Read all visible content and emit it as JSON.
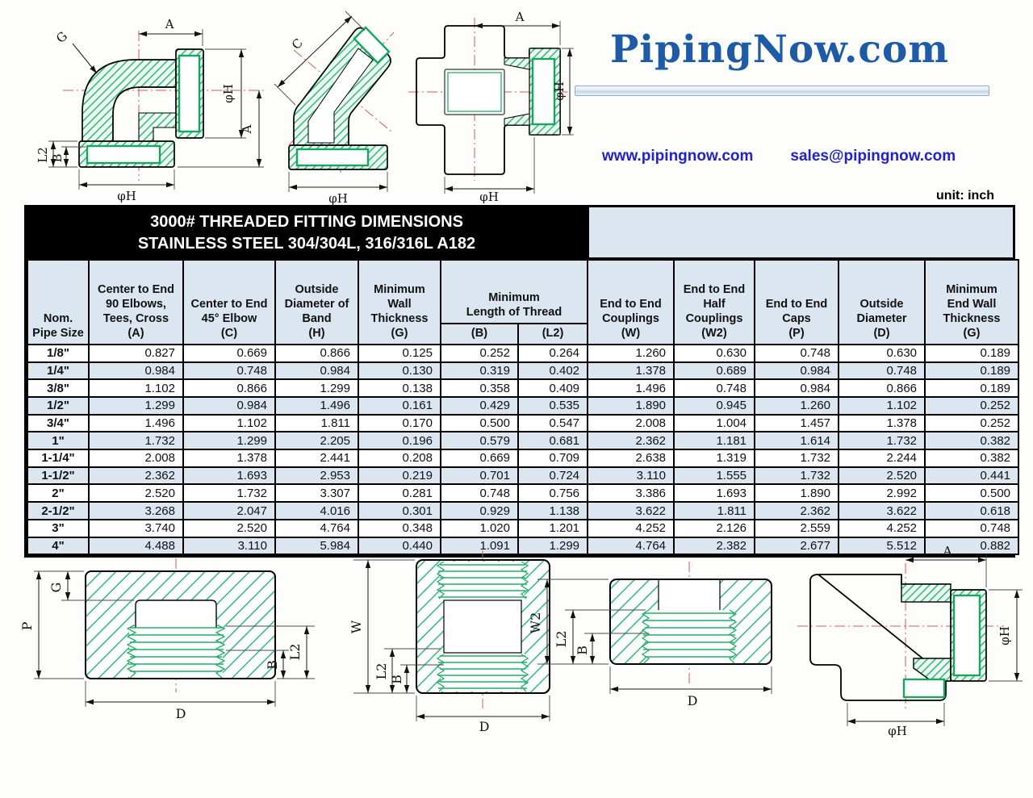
{
  "page": {
    "unit_note": "unit: inch"
  },
  "logo": {
    "text": "PipingNow.com",
    "website": "www.pipingnow.com",
    "email": "sales@pipingnow.com"
  },
  "title": {
    "line1": "3000# THREADED FITTING DIMENSIONS",
    "line2": "STAINLESS STEEL 304/304L, 316/316L  A182"
  },
  "colors": {
    "logo_blue": "#1e5ba7",
    "link_blue": "#2121cf",
    "table_header_bg": "#dce6f1",
    "title_bg": "#000000",
    "title_fg": "#ffffff",
    "hatch_green": "#2fb878",
    "socket_green": "#17a55f",
    "centerline_red": "#d85a5a"
  },
  "table": {
    "headers": {
      "size": "Nom.\nPipe Size",
      "a": "Center to End\n90 Elbows,\nTees, Cross\n(A)",
      "c": "Center to End\n45° Elbow\n(C)",
      "h": "Outside\nDiameter of\nBand\n(H)",
      "g": "Minimum\nWall\nThickness\n(G)",
      "thread": "Minimum\nLength of Thread",
      "b": "(B)",
      "l2": "(L2)",
      "w": "End to End\nCouplings\n(W)",
      "w2": "End to End\nHalf\nCouplings\n(W2)",
      "p": "End to End\nCaps\n(P)",
      "d": "Outside\nDiameter\n(D)",
      "g2": "Minimum\nEnd Wall\nThickness\n(G)"
    },
    "rows": [
      [
        "1/8\"",
        "0.827",
        "0.669",
        "0.866",
        "0.125",
        "0.252",
        "0.264",
        "1.260",
        "0.630",
        "0.748",
        "0.630",
        "0.189"
      ],
      [
        "1/4\"",
        "0.984",
        "0.748",
        "0.984",
        "0.130",
        "0.319",
        "0.402",
        "1.378",
        "0.689",
        "0.984",
        "0.748",
        "0.189"
      ],
      [
        "3/8\"",
        "1.102",
        "0.866",
        "1.299",
        "0.138",
        "0.358",
        "0.409",
        "1.496",
        "0.748",
        "0.984",
        "0.866",
        "0.189"
      ],
      [
        "1/2\"",
        "1.299",
        "0.984",
        "1.496",
        "0.161",
        "0.429",
        "0.535",
        "1.890",
        "0.945",
        "1.260",
        "1.102",
        "0.252"
      ],
      [
        "3/4\"",
        "1.496",
        "1.102",
        "1.811",
        "0.170",
        "0.500",
        "0.547",
        "2.008",
        "1.004",
        "1.457",
        "1.378",
        "0.252"
      ],
      [
        "1\"",
        "1.732",
        "1.299",
        "2.205",
        "0.196",
        "0.579",
        "0.681",
        "2.362",
        "1.181",
        "1.614",
        "1.732",
        "0.382"
      ],
      [
        "1-1/4\"",
        "2.008",
        "1.378",
        "2.441",
        "0.208",
        "0.669",
        "0.709",
        "2.638",
        "1.319",
        "1.732",
        "2.244",
        "0.382"
      ],
      [
        "1-1/2\"",
        "2.362",
        "1.693",
        "2.953",
        "0.219",
        "0.701",
        "0.724",
        "3.110",
        "1.555",
        "1.732",
        "2.520",
        "0.441"
      ],
      [
        "2\"",
        "2.520",
        "1.732",
        "3.307",
        "0.281",
        "0.748",
        "0.756",
        "3.386",
        "1.693",
        "1.890",
        "2.992",
        "0.500"
      ],
      [
        "2-1/2\"",
        "3.268",
        "2.047",
        "4.016",
        "0.301",
        "0.929",
        "1.138",
        "3.622",
        "1.811",
        "2.362",
        "3.622",
        "0.618"
      ],
      [
        "3\"",
        "3.740",
        "2.520",
        "4.764",
        "0.348",
        "1.020",
        "1.201",
        "4.252",
        "2.126",
        "2.559",
        "4.252",
        "0.748"
      ],
      [
        "4\"",
        "4.488",
        "3.110",
        "5.984",
        "0.440",
        "1.091",
        "1.299",
        "4.764",
        "2.382",
        "2.677",
        "5.512",
        "0.882"
      ]
    ]
  },
  "drawings": {
    "elbow90": {
      "a_top": "A",
      "g": "G",
      "h_right": "φH",
      "a_right": "A",
      "l2": "L2",
      "b": "B",
      "h_bottom": "φH"
    },
    "elbow45": {
      "c": "C",
      "h_bottom": "φH",
      "c_side": "C"
    },
    "cross": {
      "a_top": "A",
      "h_right": "φH",
      "h_bottom": "φH"
    },
    "cap": {
      "g": "G",
      "p": "P",
      "l2": "L2",
      "b": "B",
      "d": "D"
    },
    "coupling": {
      "w": "W",
      "l2": "L2",
      "b": "B",
      "d": "D"
    },
    "half_coupling": {
      "w2": "W2",
      "l2": "L2",
      "b": "B",
      "d": "D"
    },
    "tee": {
      "a_top": "A",
      "h_right": "φH",
      "h_bottom": "φH"
    }
  }
}
